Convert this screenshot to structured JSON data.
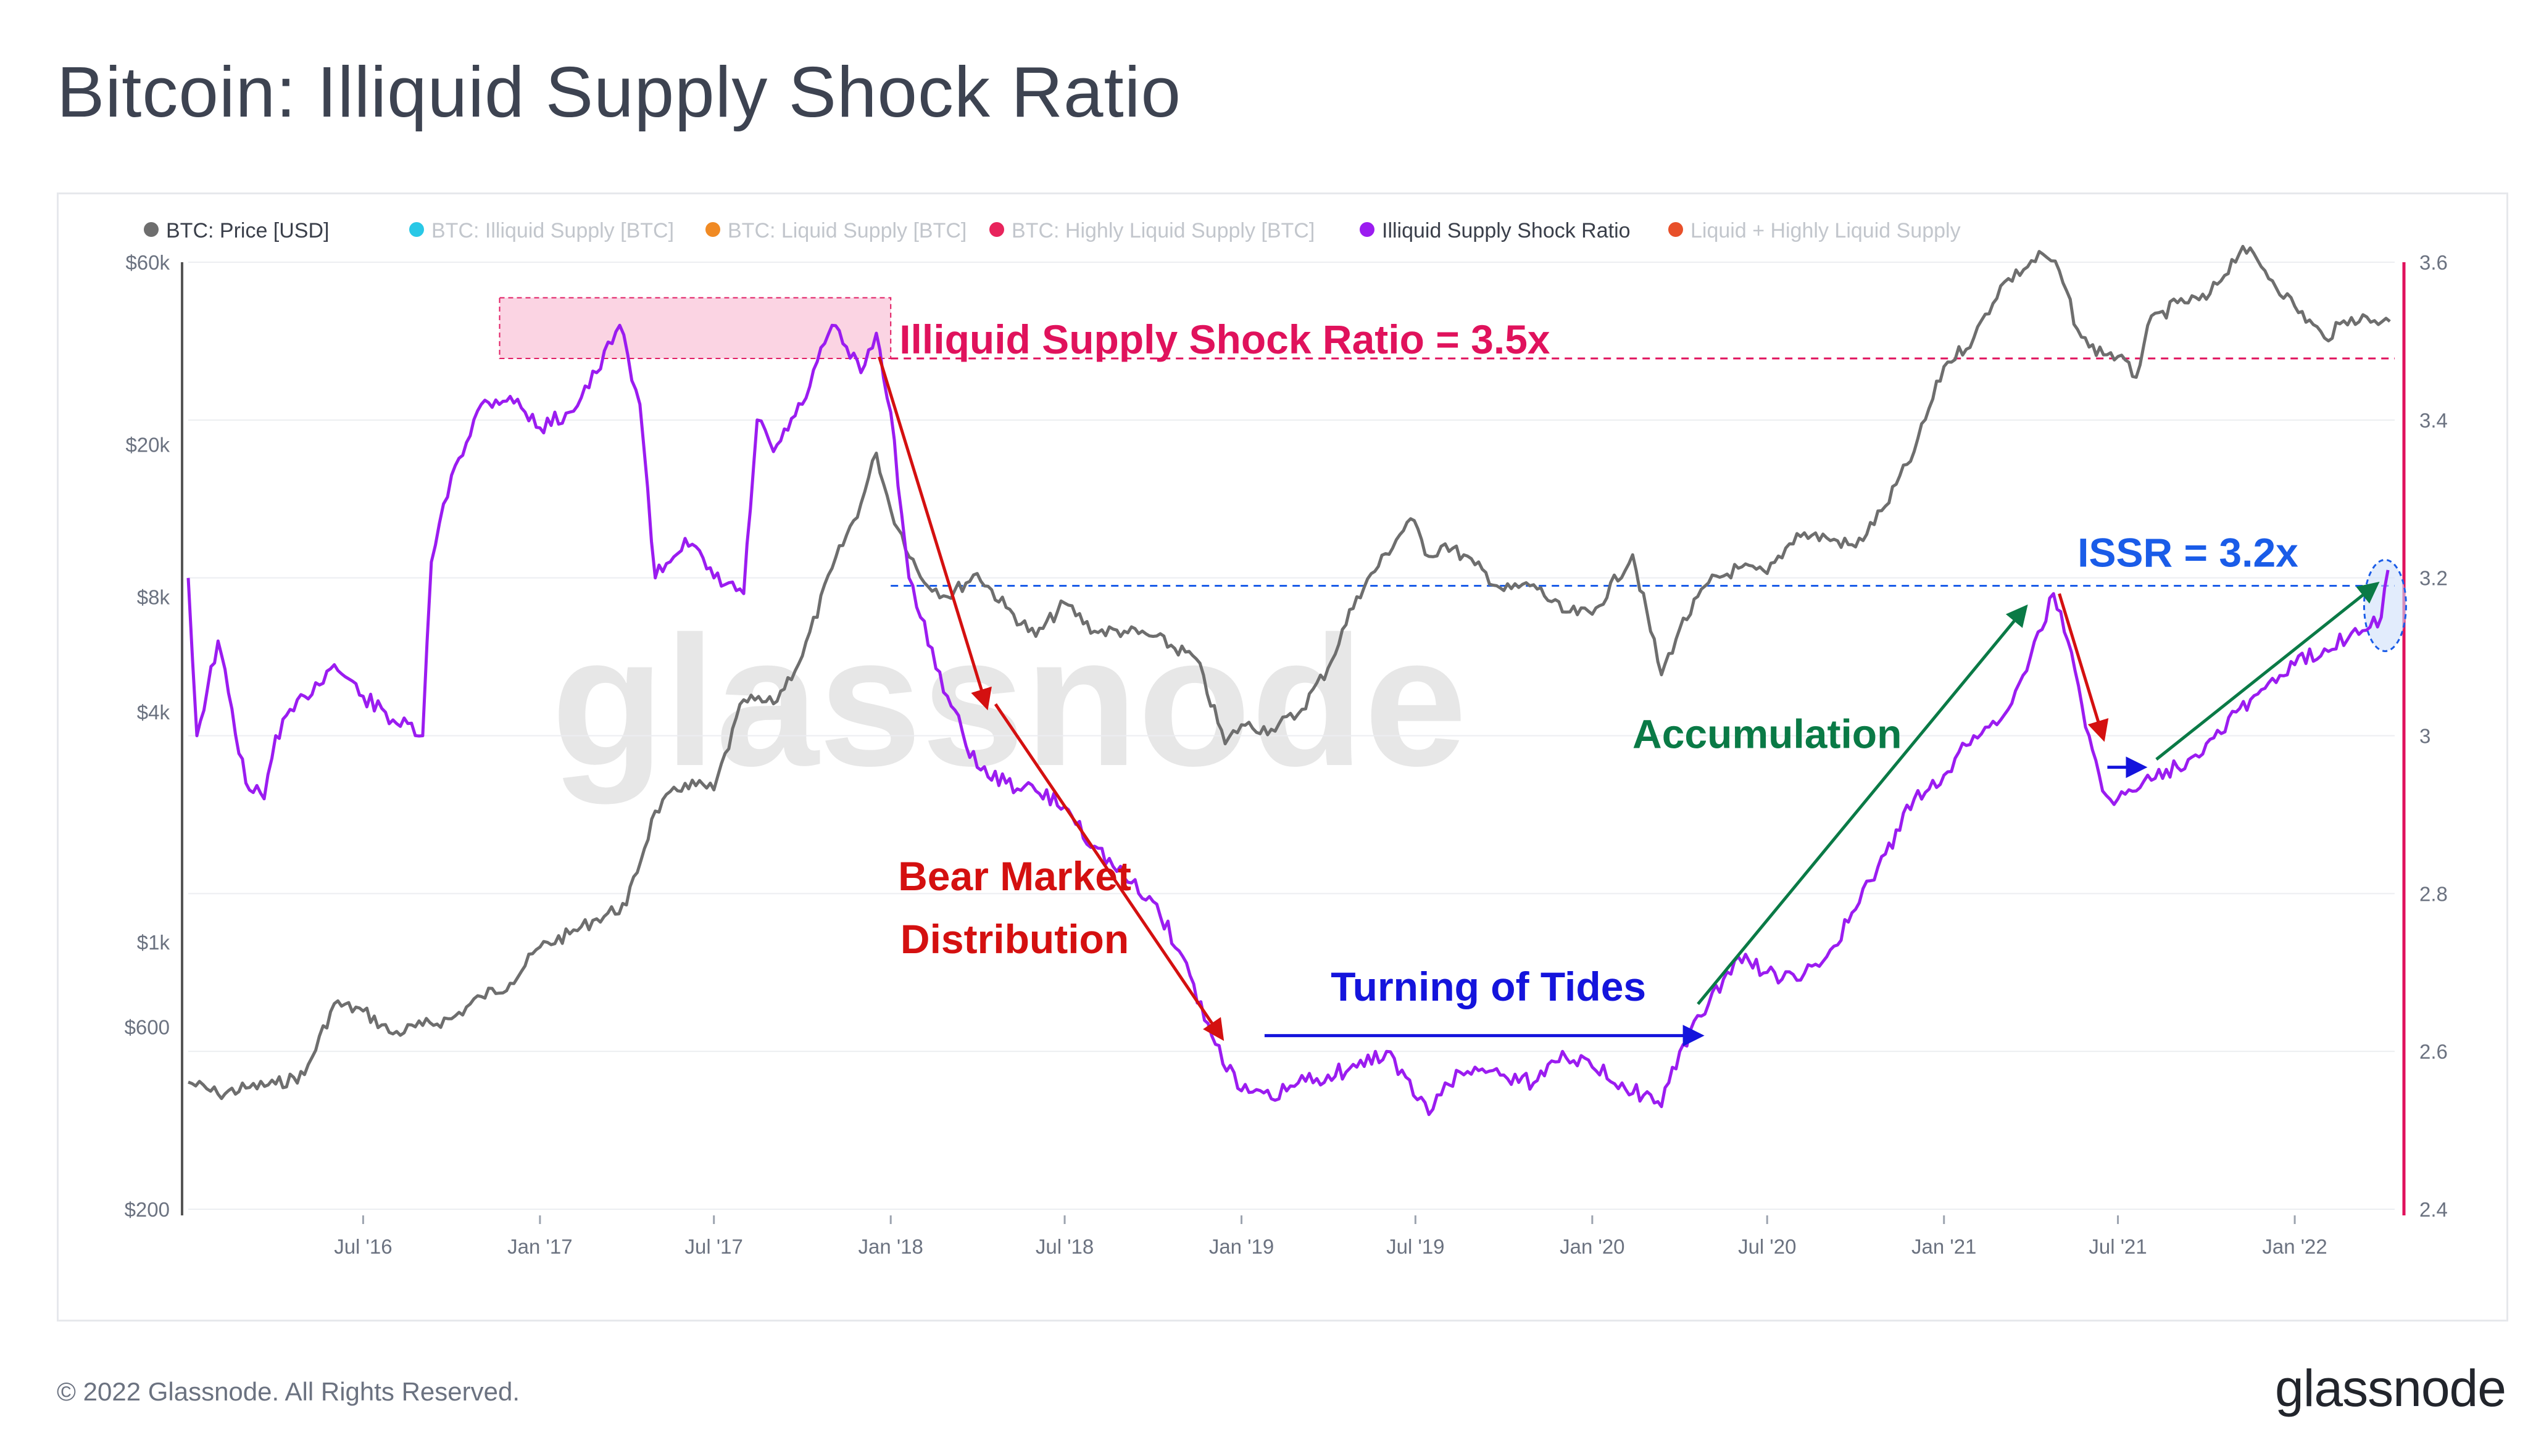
{
  "page": {
    "title": "Bitcoin: Illiquid Supply Shock Ratio",
    "copyright": "© 2022 Glassnode. All Rights Reserved.",
    "logo_text": "glassnode",
    "watermark": "glassnode"
  },
  "colors": {
    "price": "#6e6e6e",
    "issr": "#9b1cf0",
    "illiquid": "#29c8e6",
    "liquid": "#f08a24",
    "highly_liquid": "#e8245c",
    "liq_plus_high": "#e8502a",
    "magenta_annotation": "#e0125c",
    "red_annotation": "#d41010",
    "blue_annotation": "#1414dc",
    "issr_blue": "#1a5ce8",
    "green_annotation": "#0a7a46",
    "right_axis": "#e0125c"
  },
  "chart_data": {
    "type": "line",
    "legend": [
      {
        "label": "BTC: Price [USD]",
        "color": "#6e6e6e",
        "active": true
      },
      {
        "label": "BTC: Illiquid Supply [BTC]",
        "color": "#29c8e6",
        "active": false
      },
      {
        "label": "BTC: Liquid Supply [BTC]",
        "color": "#f08a24",
        "active": false
      },
      {
        "label": "BTC: Highly Liquid Supply [BTC]",
        "color": "#e8245c",
        "active": false
      },
      {
        "label": "Illiquid Supply Shock Ratio",
        "color": "#9b1cf0",
        "active": true
      },
      {
        "label": "Liquid + Highly Liquid Supply",
        "color": "#e8502a",
        "active": false
      }
    ],
    "x_ticks": [
      "Jul '16",
      "Jan '17",
      "Jul '17",
      "Jan '18",
      "Jul '18",
      "Jan '19",
      "Jul '19",
      "Jan '20",
      "Jul '20",
      "Jan '21",
      "Jul '21",
      "Jan '22"
    ],
    "x_tick_dates": [
      "2016-07-01",
      "2017-01-01",
      "2017-07-01",
      "2018-01-01",
      "2018-07-01",
      "2019-01-01",
      "2019-07-01",
      "2020-01-01",
      "2020-07-01",
      "2021-01-01",
      "2021-07-01",
      "2022-01-01"
    ],
    "x_range": [
      "2016-01-01",
      "2022-04-15"
    ],
    "left_axis": {
      "scale": "log",
      "ticks": [
        "$60k",
        "$20k",
        "$8k",
        "$4k",
        "$1k",
        "$600",
        "$200"
      ],
      "tick_values": [
        60000,
        20000,
        8000,
        4000,
        1000,
        600,
        200
      ],
      "range": [
        200,
        60000
      ]
    },
    "right_axis": {
      "scale": "linear",
      "ticks": [
        "3.6",
        "3.4",
        "3.2",
        "3",
        "2.8",
        "2.6",
        "2.4"
      ],
      "tick_values": [
        3.6,
        3.4,
        3.2,
        3.0,
        2.8,
        2.6,
        2.4
      ],
      "range": [
        2.4,
        3.6
      ]
    },
    "grid": true,
    "series": [
      {
        "name": "BTC: Price [USD]",
        "axis": "left",
        "points": [
          [
            "2016-01-01",
            430
          ],
          [
            "2016-02-01",
            400
          ],
          [
            "2016-03-01",
            415
          ],
          [
            "2016-04-01",
            425
          ],
          [
            "2016-05-01",
            450
          ],
          [
            "2016-06-01",
            690
          ],
          [
            "2016-07-01",
            660
          ],
          [
            "2016-08-01",
            575
          ],
          [
            "2016-09-01",
            605
          ],
          [
            "2016-10-01",
            630
          ],
          [
            "2016-11-01",
            720
          ],
          [
            "2016-12-01",
            780
          ],
          [
            "2017-01-01",
            970
          ],
          [
            "2017-02-01",
            1050
          ],
          [
            "2017-03-01",
            1150
          ],
          [
            "2017-04-01",
            1250
          ],
          [
            "2017-05-01",
            2200
          ],
          [
            "2017-06-01",
            2600
          ],
          [
            "2017-07-01",
            2500
          ],
          [
            "2017-08-01",
            4300
          ],
          [
            "2017-09-01",
            4200
          ],
          [
            "2017-10-01",
            5600
          ],
          [
            "2017-11-01",
            9500
          ],
          [
            "2017-12-01",
            14000
          ],
          [
            "2017-12-17",
            19000
          ],
          [
            "2018-01-01",
            13500
          ],
          [
            "2018-02-01",
            9000
          ],
          [
            "2018-03-01",
            8000
          ],
          [
            "2018-04-01",
            9200
          ],
          [
            "2018-05-01",
            7500
          ],
          [
            "2018-06-01",
            6300
          ],
          [
            "2018-07-01",
            7700
          ],
          [
            "2018-08-01",
            6500
          ],
          [
            "2018-09-01",
            6500
          ],
          [
            "2018-10-01",
            6300
          ],
          [
            "2018-11-15",
            5500
          ],
          [
            "2018-12-15",
            3300
          ],
          [
            "2019-01-01",
            3700
          ],
          [
            "2019-02-01",
            3600
          ],
          [
            "2019-03-01",
            3950
          ],
          [
            "2019-04-01",
            5200
          ],
          [
            "2019-05-01",
            8000
          ],
          [
            "2019-06-26",
            12800
          ],
          [
            "2019-07-15",
            10200
          ],
          [
            "2019-08-01",
            11000
          ],
          [
            "2019-09-01",
            9700
          ],
          [
            "2019-10-01",
            8300
          ],
          [
            "2019-11-01",
            8600
          ],
          [
            "2019-12-01",
            7300
          ],
          [
            "2020-01-01",
            7200
          ],
          [
            "2020-02-12",
            10300
          ],
          [
            "2020-03-13",
            5000
          ],
          [
            "2020-04-01",
            6600
          ],
          [
            "2020-05-01",
            8700
          ],
          [
            "2020-06-01",
            9500
          ],
          [
            "2020-07-01",
            9200
          ],
          [
            "2020-08-01",
            11700
          ],
          [
            "2020-09-01",
            11400
          ],
          [
            "2020-10-01",
            10800
          ],
          [
            "2020-11-01",
            13800
          ],
          [
            "2020-12-01",
            19200
          ],
          [
            "2021-01-01",
            32000
          ],
          [
            "2021-02-01",
            38000
          ],
          [
            "2021-03-01",
            52000
          ],
          [
            "2021-04-14",
            63000
          ],
          [
            "2021-05-01",
            57000
          ],
          [
            "2021-05-20",
            40000
          ],
          [
            "2021-06-01",
            36000
          ],
          [
            "2021-07-01",
            34000
          ],
          [
            "2021-07-20",
            30000
          ],
          [
            "2021-08-01",
            41000
          ],
          [
            "2021-09-01",
            47000
          ],
          [
            "2021-10-01",
            48000
          ],
          [
            "2021-11-08",
            66000
          ],
          [
            "2021-12-01",
            57000
          ],
          [
            "2022-01-01",
            46000
          ],
          [
            "2022-02-01",
            38000
          ],
          [
            "2022-03-01",
            43000
          ],
          [
            "2022-04-10",
            42000
          ]
        ]
      },
      {
        "name": "Illiquid Supply Shock Ratio",
        "axis": "right",
        "points": [
          [
            "2016-01-01",
            3.2
          ],
          [
            "2016-01-10",
            3.0
          ],
          [
            "2016-02-01",
            3.12
          ],
          [
            "2016-03-01",
            2.94
          ],
          [
            "2016-03-20",
            2.92
          ],
          [
            "2016-04-01",
            3.0
          ],
          [
            "2016-05-01",
            3.05
          ],
          [
            "2016-06-01",
            3.09
          ],
          [
            "2016-07-01",
            3.05
          ],
          [
            "2016-08-01",
            3.02
          ],
          [
            "2016-09-01",
            3.0
          ],
          [
            "2016-09-10",
            3.22
          ],
          [
            "2016-10-01",
            3.33
          ],
          [
            "2016-11-01",
            3.42
          ],
          [
            "2016-12-01",
            3.43
          ],
          [
            "2017-01-01",
            3.39
          ],
          [
            "2017-02-01",
            3.41
          ],
          [
            "2017-03-01",
            3.46
          ],
          [
            "2017-03-25",
            3.52
          ],
          [
            "2017-04-15",
            3.42
          ],
          [
            "2017-05-01",
            3.2
          ],
          [
            "2017-06-01",
            3.25
          ],
          [
            "2017-07-01",
            3.2
          ],
          [
            "2017-08-01",
            3.18
          ],
          [
            "2017-08-15",
            3.4
          ],
          [
            "2017-09-01",
            3.36
          ],
          [
            "2017-10-01",
            3.42
          ],
          [
            "2017-11-01",
            3.52
          ],
          [
            "2017-12-01",
            3.46
          ],
          [
            "2017-12-17",
            3.51
          ],
          [
            "2018-01-01",
            3.41
          ],
          [
            "2018-01-20",
            3.2
          ],
          [
            "2018-02-01",
            3.15
          ],
          [
            "2018-03-01",
            3.05
          ],
          [
            "2018-04-01",
            2.96
          ],
          [
            "2018-05-01",
            2.94
          ],
          [
            "2018-06-01",
            2.93
          ],
          [
            "2018-07-01",
            2.91
          ],
          [
            "2018-08-01",
            2.86
          ],
          [
            "2018-09-01",
            2.82
          ],
          [
            "2018-10-01",
            2.79
          ],
          [
            "2018-11-01",
            2.72
          ],
          [
            "2018-12-01",
            2.62
          ],
          [
            "2019-01-01",
            2.55
          ],
          [
            "2019-02-01",
            2.54
          ],
          [
            "2019-03-01",
            2.56
          ],
          [
            "2019-04-01",
            2.57
          ],
          [
            "2019-05-01",
            2.58
          ],
          [
            "2019-06-01",
            2.6
          ],
          [
            "2019-07-15",
            2.52
          ],
          [
            "2019-08-01",
            2.56
          ],
          [
            "2019-09-01",
            2.58
          ],
          [
            "2019-10-01",
            2.57
          ],
          [
            "2019-11-01",
            2.56
          ],
          [
            "2019-12-01",
            2.6
          ],
          [
            "2020-01-01",
            2.58
          ],
          [
            "2020-02-01",
            2.56
          ],
          [
            "2020-03-13",
            2.53
          ],
          [
            "2020-04-01",
            2.6
          ],
          [
            "2020-05-01",
            2.66
          ],
          [
            "2020-06-01",
            2.72
          ],
          [
            "2020-07-01",
            2.7
          ],
          [
            "2020-08-01",
            2.69
          ],
          [
            "2020-09-01",
            2.72
          ],
          [
            "2020-10-01",
            2.78
          ],
          [
            "2020-11-01",
            2.85
          ],
          [
            "2020-12-01",
            2.92
          ],
          [
            "2021-01-01",
            2.95
          ],
          [
            "2021-02-01",
            3.0
          ],
          [
            "2021-03-01",
            3.02
          ],
          [
            "2021-04-01",
            3.1
          ],
          [
            "2021-04-25",
            3.18
          ],
          [
            "2021-05-10",
            3.12
          ],
          [
            "2021-06-01",
            3.0
          ],
          [
            "2021-06-15",
            2.93
          ],
          [
            "2021-07-01",
            2.92
          ],
          [
            "2021-07-20",
            2.93
          ],
          [
            "2021-08-01",
            2.95
          ],
          [
            "2021-09-01",
            2.96
          ],
          [
            "2021-10-01",
            2.99
          ],
          [
            "2021-11-01",
            3.03
          ],
          [
            "2021-12-01",
            3.06
          ],
          [
            "2022-01-01",
            3.09
          ],
          [
            "2022-02-01",
            3.11
          ],
          [
            "2022-03-01",
            3.13
          ],
          [
            "2022-04-01",
            3.15
          ],
          [
            "2022-04-08",
            3.21
          ]
        ]
      }
    ],
    "annotations": {
      "issr_35": "Illiquid Supply Shock Ratio = 3.5x",
      "issr_32": "ISSR = 3.2x",
      "bear_line1": "Bear Market",
      "bear_line2": "Distribution",
      "turning": "Turning of Tides",
      "accumulation": "Accumulation"
    }
  }
}
